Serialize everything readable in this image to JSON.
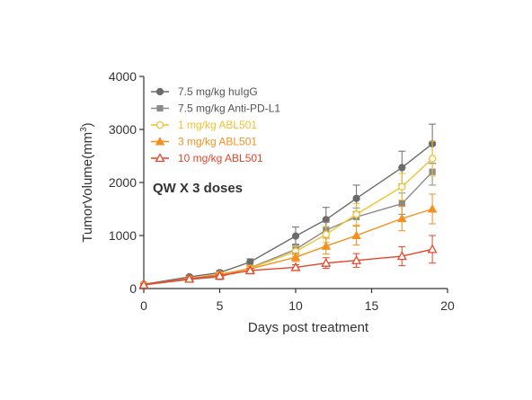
{
  "chart_data": {
    "type": "line",
    "xlabel": "Days post treatment",
    "ylabel_main": "TumorVolume(mm",
    "ylabel_sup": "3",
    "ylabel_close": ")",
    "xlim": [
      0,
      20
    ],
    "ylim": [
      0,
      4000
    ],
    "xticks": [
      0,
      5,
      10,
      15,
      20
    ],
    "yticks": [
      0,
      1000,
      2000,
      3000,
      4000
    ],
    "grid": false,
    "legend_position": "top-left",
    "annotation": "QW X 3 doses",
    "series": [
      {
        "name": "7.5 mg/kg huIgG",
        "color": "#6b6b6b",
        "marker": "circle-filled",
        "x": [
          0,
          3,
          5,
          7,
          10,
          12,
          14,
          17,
          19
        ],
        "y": [
          80,
          220,
          300,
          500,
          990,
          1300,
          1700,
          2280,
          2730
        ],
        "err": [
          20,
          30,
          40,
          60,
          170,
          230,
          250,
          310,
          370
        ]
      },
      {
        "name": "7.5 mg/kg Anti-PD-L1",
        "color": "#8a8a8a",
        "marker": "square-filled",
        "x": [
          0,
          3,
          5,
          7,
          10,
          12,
          14,
          17,
          19
        ],
        "y": [
          70,
          170,
          220,
          390,
          740,
          1100,
          1350,
          1600,
          2200
        ],
        "err": [
          20,
          30,
          35,
          50,
          100,
          150,
          170,
          200,
          250
        ]
      },
      {
        "name": "1 mg/kg ABL501",
        "color": "#f2c12e",
        "marker": "circle-open",
        "x": [
          0,
          3,
          5,
          7,
          10,
          12,
          14,
          17,
          19
        ],
        "y": [
          70,
          180,
          260,
          380,
          700,
          1020,
          1400,
          1920,
          2450
        ],
        "err": [
          20,
          30,
          40,
          50,
          100,
          150,
          200,
          250,
          330
        ]
      },
      {
        "name": "3 mg/kg ABL501",
        "color": "#f5901e",
        "marker": "triangle-filled",
        "x": [
          0,
          3,
          5,
          7,
          10,
          12,
          14,
          17,
          19
        ],
        "y": [
          70,
          190,
          270,
          370,
          590,
          800,
          1000,
          1320,
          1500
        ],
        "err": [
          20,
          30,
          40,
          50,
          80,
          150,
          180,
          230,
          280
        ]
      },
      {
        "name": "10 mg/kg ABL501",
        "color": "#e8452a",
        "marker": "triangle-open",
        "x": [
          0,
          3,
          5,
          7,
          10,
          12,
          14,
          17,
          19
        ],
        "y": [
          70,
          180,
          240,
          340,
          400,
          480,
          530,
          610,
          740
        ],
        "err": [
          20,
          30,
          30,
          40,
          50,
          100,
          130,
          180,
          260
        ]
      }
    ]
  }
}
